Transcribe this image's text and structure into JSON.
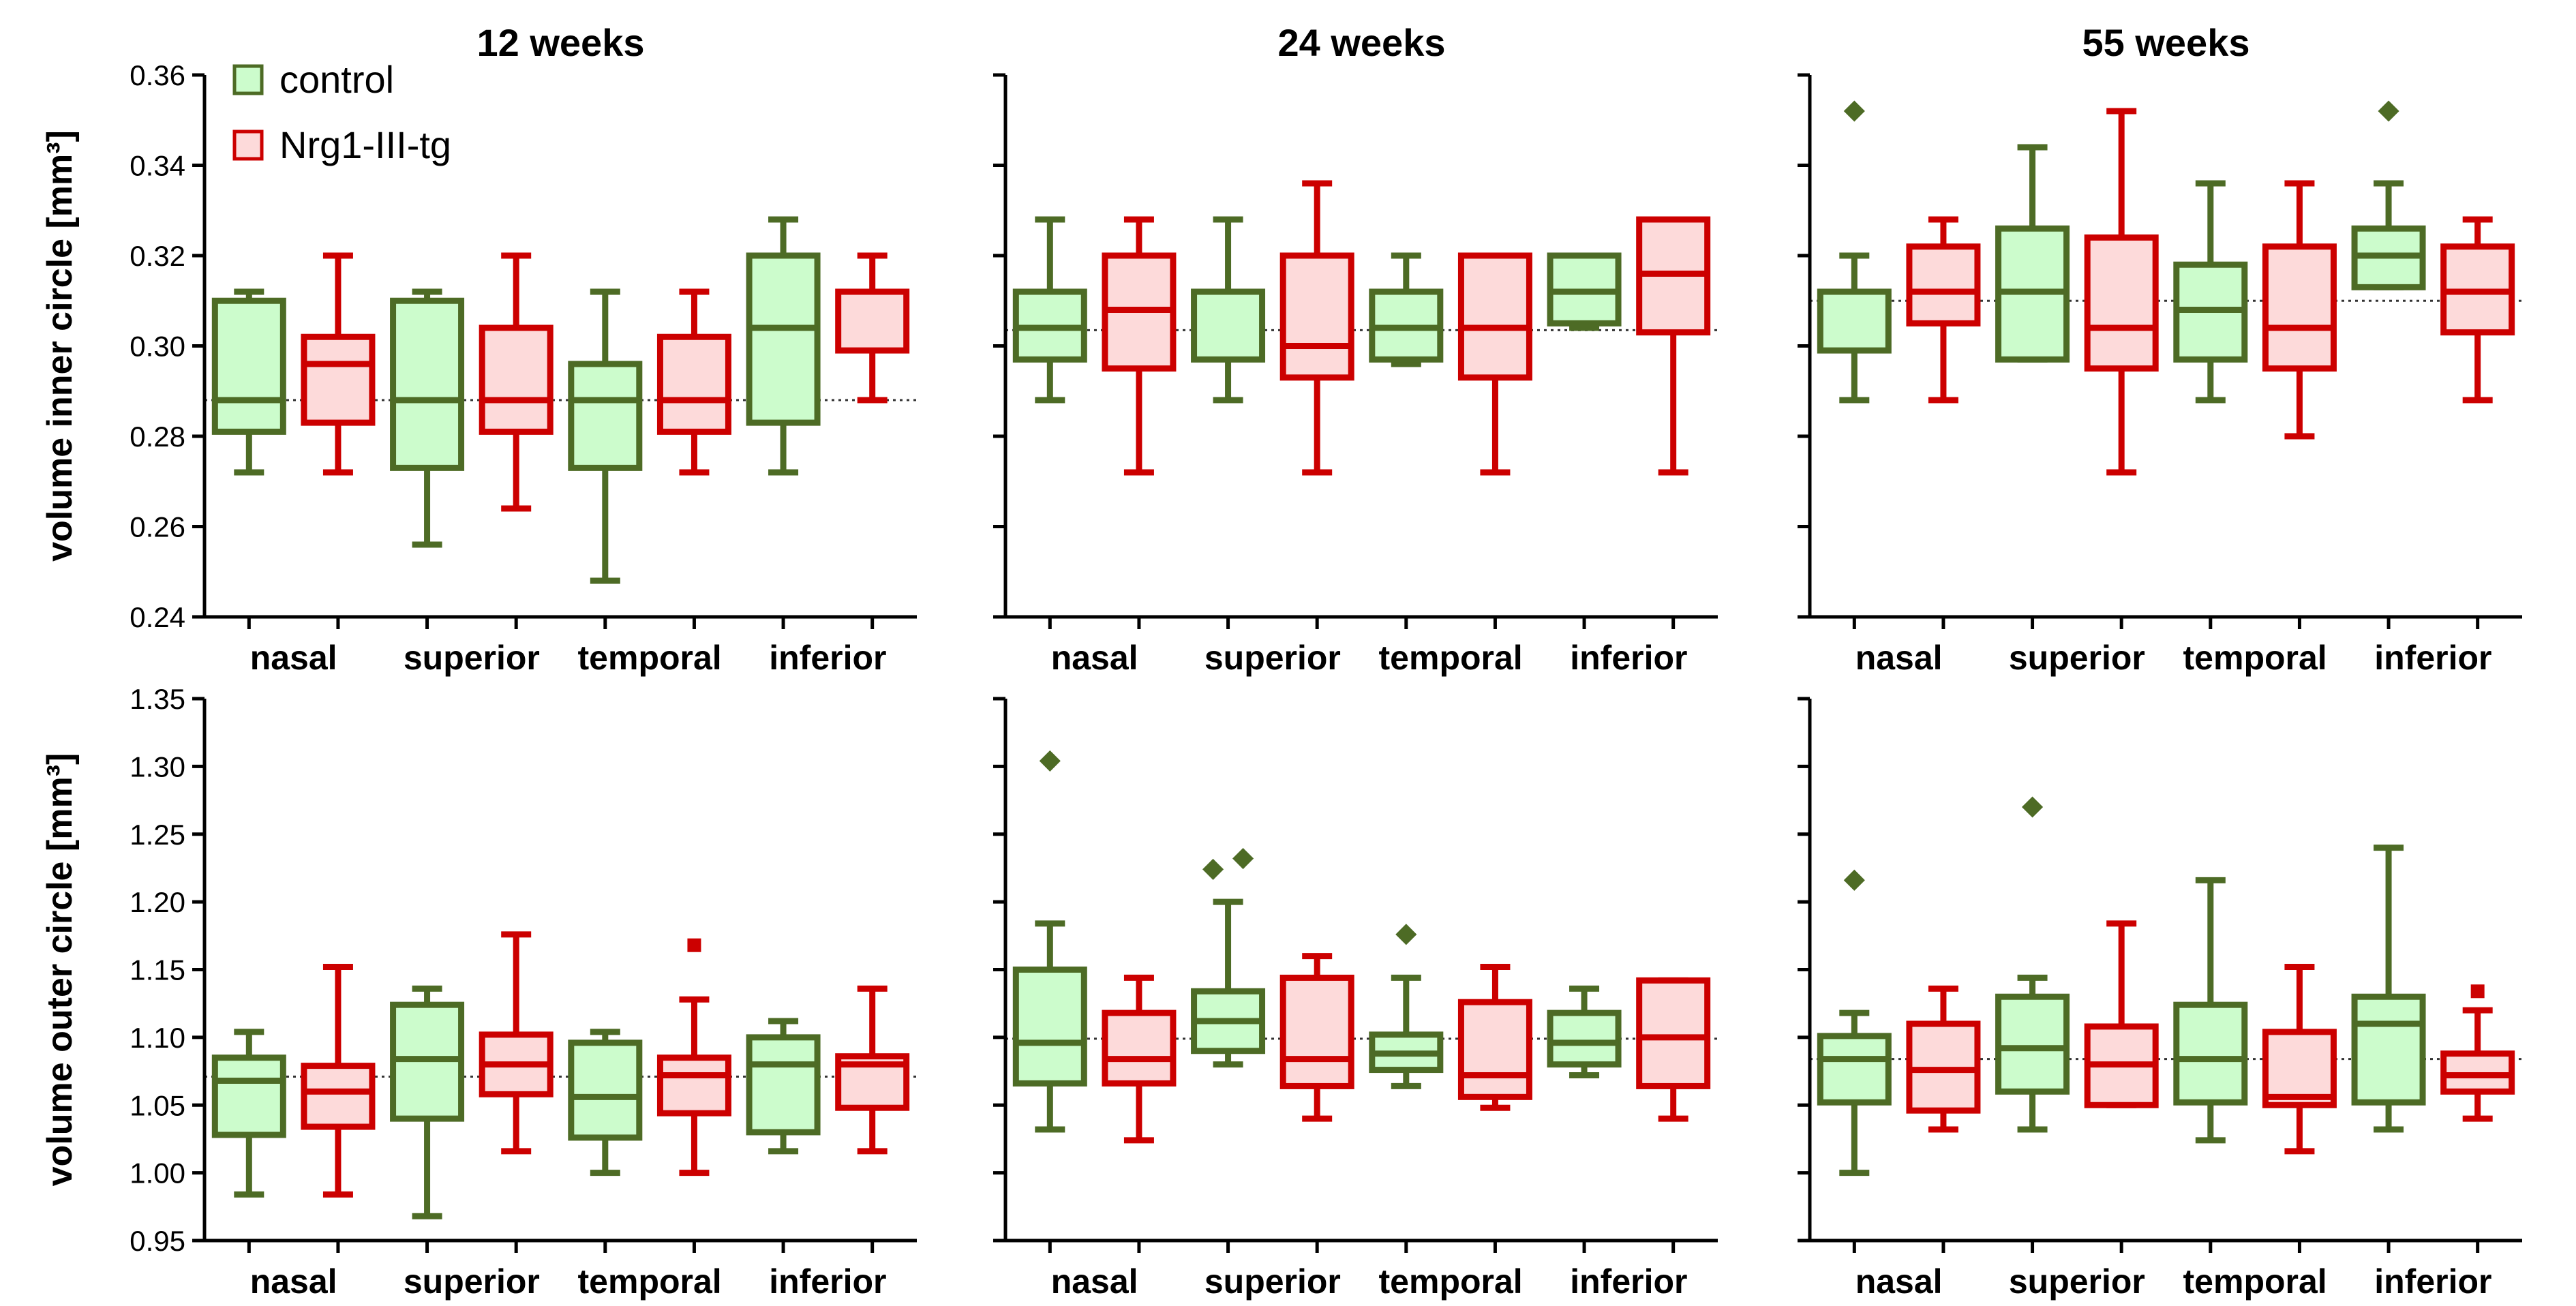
{
  "colors": {
    "control_stroke": "#4d6b25",
    "control_fill": "#ccfccc",
    "tg_stroke": "#cc0000",
    "tg_fill": "#fddada",
    "axis": "#000000",
    "mean_line": "#333333"
  },
  "chart_data": {
    "type": "box",
    "legend": [
      {
        "key": "control",
        "label": "control"
      },
      {
        "key": "tg",
        "label": "Nrg1-III-tg"
      }
    ],
    "categories": [
      "nasal",
      "superior",
      "temporal",
      "inferior"
    ],
    "column_titles": [
      "12 weeks",
      "24 weeks",
      "55 weeks"
    ],
    "rows": [
      {
        "ylabel": "volume inner circle [mm³]",
        "ylim": [
          0.24,
          0.36
        ],
        "ticks": [
          0.24,
          0.26,
          0.28,
          0.3,
          0.32,
          0.34,
          0.36
        ],
        "tick_labels": [
          "0.24",
          "0.26",
          "0.28",
          "0.30",
          "0.32",
          "0.34",
          "0.36"
        ],
        "panels": [
          {
            "title": "12 weeks",
            "ref_line": 0.288,
            "boxes": [
              {
                "group": "control",
                "category": "nasal",
                "min": 0.272,
                "q1": 0.281,
                "median": 0.288,
                "q3": 0.31,
                "max": 0.312,
                "outliers": []
              },
              {
                "group": "tg",
                "category": "nasal",
                "min": 0.272,
                "q1": 0.283,
                "median": 0.296,
                "q3": 0.302,
                "max": 0.32,
                "outliers": []
              },
              {
                "group": "control",
                "category": "superior",
                "min": 0.256,
                "q1": 0.273,
                "median": 0.288,
                "q3": 0.31,
                "max": 0.312,
                "outliers": []
              },
              {
                "group": "tg",
                "category": "superior",
                "min": 0.264,
                "q1": 0.281,
                "median": 0.288,
                "q3": 0.304,
                "max": 0.32,
                "outliers": []
              },
              {
                "group": "control",
                "category": "temporal",
                "min": 0.248,
                "q1": 0.273,
                "median": 0.288,
                "q3": 0.296,
                "max": 0.312,
                "outliers": []
              },
              {
                "group": "tg",
                "category": "temporal",
                "min": 0.272,
                "q1": 0.281,
                "median": 0.288,
                "q3": 0.302,
                "max": 0.312,
                "outliers": []
              },
              {
                "group": "control",
                "category": "inferior",
                "min": 0.272,
                "q1": 0.283,
                "median": 0.304,
                "q3": 0.32,
                "max": 0.328,
                "outliers": []
              },
              {
                "group": "tg",
                "category": "inferior",
                "min": 0.288,
                "q1": 0.299,
                "median": 0.312,
                "q3": 0.312,
                "max": 0.32,
                "outliers": []
              }
            ]
          },
          {
            "title": "24 weeks",
            "ref_line": 0.3035,
            "boxes": [
              {
                "group": "control",
                "category": "nasal",
                "min": 0.288,
                "q1": 0.297,
                "median": 0.304,
                "q3": 0.312,
                "max": 0.328,
                "outliers": []
              },
              {
                "group": "tg",
                "category": "nasal",
                "min": 0.272,
                "q1": 0.295,
                "median": 0.308,
                "q3": 0.32,
                "max": 0.328,
                "outliers": []
              },
              {
                "group": "control",
                "category": "superior",
                "min": 0.288,
                "q1": 0.297,
                "median": 0.312,
                "q3": 0.312,
                "max": 0.328,
                "outliers": []
              },
              {
                "group": "tg",
                "category": "superior",
                "min": 0.272,
                "q1": 0.293,
                "median": 0.3,
                "q3": 0.32,
                "max": 0.336,
                "outliers": []
              },
              {
                "group": "control",
                "category": "temporal",
                "min": 0.296,
                "q1": 0.297,
                "median": 0.304,
                "q3": 0.312,
                "max": 0.32,
                "outliers": []
              },
              {
                "group": "tg",
                "category": "temporal",
                "min": 0.272,
                "q1": 0.293,
                "median": 0.304,
                "q3": 0.32,
                "max": 0.32,
                "outliers": []
              },
              {
                "group": "control",
                "category": "inferior",
                "min": 0.304,
                "q1": 0.305,
                "median": 0.312,
                "q3": 0.32,
                "max": 0.32,
                "outliers": []
              },
              {
                "group": "tg",
                "category": "inferior",
                "min": 0.272,
                "q1": 0.303,
                "median": 0.316,
                "q3": 0.328,
                "max": 0.328,
                "outliers": []
              }
            ]
          },
          {
            "title": "55 weeks",
            "ref_line": 0.31,
            "boxes": [
              {
                "group": "control",
                "category": "nasal",
                "min": 0.288,
                "q1": 0.299,
                "median": 0.312,
                "q3": 0.312,
                "max": 0.32,
                "outliers": [
                  0.352
                ]
              },
              {
                "group": "tg",
                "category": "nasal",
                "min": 0.288,
                "q1": 0.305,
                "median": 0.312,
                "q3": 0.322,
                "max": 0.328,
                "outliers": []
              },
              {
                "group": "control",
                "category": "superior",
                "min": 0.297,
                "q1": 0.297,
                "median": 0.312,
                "q3": 0.326,
                "max": 0.344,
                "outliers": []
              },
              {
                "group": "tg",
                "category": "superior",
                "min": 0.272,
                "q1": 0.295,
                "median": 0.304,
                "q3": 0.324,
                "max": 0.352,
                "outliers": []
              },
              {
                "group": "control",
                "category": "temporal",
                "min": 0.288,
                "q1": 0.297,
                "median": 0.308,
                "q3": 0.318,
                "max": 0.336,
                "outliers": []
              },
              {
                "group": "tg",
                "category": "temporal",
                "min": 0.28,
                "q1": 0.295,
                "median": 0.304,
                "q3": 0.322,
                "max": 0.336,
                "outliers": []
              },
              {
                "group": "control",
                "category": "inferior",
                "min": 0.313,
                "q1": 0.313,
                "median": 0.32,
                "q3": 0.326,
                "max": 0.336,
                "outliers": [
                  0.352
                ]
              },
              {
                "group": "tg",
                "category": "inferior",
                "min": 0.288,
                "q1": 0.303,
                "median": 0.312,
                "q3": 0.322,
                "max": 0.328,
                "outliers": []
              }
            ]
          }
        ]
      },
      {
        "ylabel": "volume outer circle [mm³]",
        "ylim": [
          0.95,
          1.35
        ],
        "ticks": [
          0.95,
          1.0,
          1.05,
          1.1,
          1.15,
          1.2,
          1.25,
          1.3,
          1.35
        ],
        "tick_labels": [
          "0.95",
          "1.00",
          "1.05",
          "1.10",
          "1.15",
          "1.20",
          "1.25",
          "1.30",
          "1.35"
        ],
        "panels": [
          {
            "title": "12 weeks",
            "ref_line": 1.071,
            "boxes": [
              {
                "group": "control",
                "category": "nasal",
                "min": 0.984,
                "q1": 1.028,
                "median": 1.068,
                "q3": 1.085,
                "max": 1.104,
                "outliers": []
              },
              {
                "group": "tg",
                "category": "nasal",
                "min": 0.984,
                "q1": 1.034,
                "median": 1.06,
                "q3": 1.079,
                "max": 1.152,
                "outliers": []
              },
              {
                "group": "control",
                "category": "superior",
                "min": 0.968,
                "q1": 1.04,
                "median": 1.084,
                "q3": 1.124,
                "max": 1.136,
                "outliers": []
              },
              {
                "group": "tg",
                "category": "superior",
                "min": 1.016,
                "q1": 1.058,
                "median": 1.08,
                "q3": 1.102,
                "max": 1.176,
                "outliers": []
              },
              {
                "group": "control",
                "category": "temporal",
                "min": 1.0,
                "q1": 1.026,
                "median": 1.056,
                "q3": 1.096,
                "max": 1.104,
                "outliers": []
              },
              {
                "group": "tg",
                "category": "temporal",
                "min": 1.0,
                "q1": 1.044,
                "median": 1.072,
                "q3": 1.085,
                "max": 1.128,
                "outliers": [
                  1.168
                ]
              },
              {
                "group": "control",
                "category": "inferior",
                "min": 1.016,
                "q1": 1.03,
                "median": 1.08,
                "q3": 1.1,
                "max": 1.112,
                "outliers": []
              },
              {
                "group": "tg",
                "category": "inferior",
                "min": 1.016,
                "q1": 1.048,
                "median": 1.08,
                "q3": 1.086,
                "max": 1.136,
                "outliers": []
              }
            ]
          },
          {
            "title": "24 weeks",
            "ref_line": 1.099,
            "boxes": [
              {
                "group": "control",
                "category": "nasal",
                "min": 1.032,
                "q1": 1.066,
                "median": 1.096,
                "q3": 1.15,
                "max": 1.184,
                "outliers": [
                  1.304
                ]
              },
              {
                "group": "tg",
                "category": "nasal",
                "min": 1.024,
                "q1": 1.066,
                "median": 1.084,
                "q3": 1.118,
                "max": 1.144,
                "outliers": []
              },
              {
                "group": "control",
                "category": "superior",
                "min": 1.08,
                "q1": 1.09,
                "median": 1.112,
                "q3": 1.134,
                "max": 1.2,
                "outliers": [
                  1.224,
                  1.232
                ]
              },
              {
                "group": "tg",
                "category": "superior",
                "min": 1.04,
                "q1": 1.064,
                "median": 1.084,
                "q3": 1.144,
                "max": 1.16,
                "outliers": []
              },
              {
                "group": "control",
                "category": "temporal",
                "min": 1.064,
                "q1": 1.076,
                "median": 1.088,
                "q3": 1.102,
                "max": 1.144,
                "outliers": [
                  1.176
                ]
              },
              {
                "group": "tg",
                "category": "temporal",
                "min": 1.048,
                "q1": 1.056,
                "median": 1.072,
                "q3": 1.126,
                "max": 1.152,
                "outliers": []
              },
              {
                "group": "control",
                "category": "inferior",
                "min": 1.072,
                "q1": 1.08,
                "median": 1.096,
                "q3": 1.118,
                "max": 1.136,
                "outliers": []
              },
              {
                "group": "tg",
                "category": "inferior",
                "min": 1.04,
                "q1": 1.064,
                "median": 1.1,
                "q3": 1.142,
                "max": 1.142,
                "outliers": []
              }
            ]
          },
          {
            "title": "55 weeks",
            "ref_line": 1.084,
            "boxes": [
              {
                "group": "control",
                "category": "nasal",
                "min": 1.0,
                "q1": 1.052,
                "median": 1.084,
                "q3": 1.101,
                "max": 1.118,
                "outliers": [
                  1.216
                ]
              },
              {
                "group": "tg",
                "category": "nasal",
                "min": 1.032,
                "q1": 1.046,
                "median": 1.076,
                "q3": 1.11,
                "max": 1.136,
                "outliers": []
              },
              {
                "group": "control",
                "category": "superior",
                "min": 1.032,
                "q1": 1.06,
                "median": 1.092,
                "q3": 1.13,
                "max": 1.144,
                "outliers": [
                  1.27
                ]
              },
              {
                "group": "tg",
                "category": "superior",
                "min": 1.05,
                "q1": 1.05,
                "median": 1.08,
                "q3": 1.108,
                "max": 1.184,
                "outliers": []
              },
              {
                "group": "control",
                "category": "temporal",
                "min": 1.024,
                "q1": 1.052,
                "median": 1.084,
                "q3": 1.124,
                "max": 1.216,
                "outliers": []
              },
              {
                "group": "tg",
                "category": "temporal",
                "min": 1.016,
                "q1": 1.05,
                "median": 1.056,
                "q3": 1.104,
                "max": 1.152,
                "outliers": []
              },
              {
                "group": "control",
                "category": "inferior",
                "min": 1.032,
                "q1": 1.052,
                "median": 1.11,
                "q3": 1.13,
                "max": 1.24,
                "outliers": []
              },
              {
                "group": "tg",
                "category": "inferior",
                "min": 1.04,
                "q1": 1.06,
                "median": 1.072,
                "q3": 1.088,
                "max": 1.12,
                "outliers": [
                  1.134
                ]
              }
            ]
          }
        ]
      }
    ]
  }
}
